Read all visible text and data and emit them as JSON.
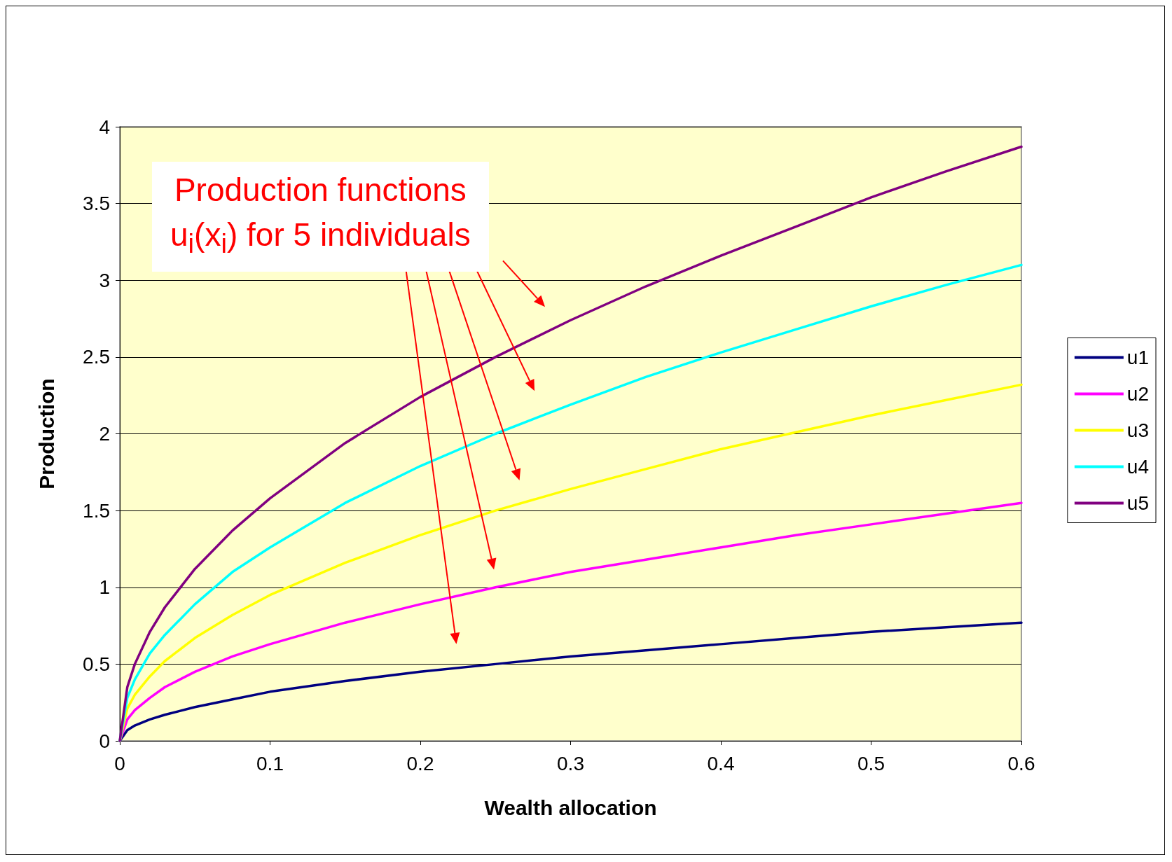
{
  "chart_data": {
    "type": "line",
    "xlabel": "Wealth allocation",
    "ylabel": "Production",
    "annotations": [
      "Production functions\nu$_{i}$(x$_{i}$) for 5 individuals"
    ],
    "x": [
      0,
      0.005,
      0.01,
      0.02,
      0.03,
      0.05,
      0.075,
      0.1,
      0.15,
      0.2,
      0.25,
      0.3,
      0.35,
      0.4,
      0.45,
      0.5,
      0.55,
      0.6
    ],
    "series": [
      {
        "name": "u1",
        "color": "#000080",
        "values": [
          0,
          0.07,
          0.1,
          0.14,
          0.17,
          0.22,
          0.27,
          0.32,
          0.39,
          0.45,
          0.5,
          0.55,
          0.59,
          0.63,
          0.67,
          0.71,
          0.74,
          0.77
        ]
      },
      {
        "name": "u2",
        "color": "#ff00ff",
        "values": [
          0,
          0.14,
          0.2,
          0.28,
          0.35,
          0.45,
          0.55,
          0.63,
          0.77,
          0.89,
          1,
          1.1,
          1.18,
          1.26,
          1.34,
          1.41,
          1.48,
          1.55
        ]
      },
      {
        "name": "u3",
        "color": "#ffff00",
        "values": [
          0,
          0.21,
          0.3,
          0.42,
          0.52,
          0.67,
          0.82,
          0.95,
          1.16,
          1.34,
          1.5,
          1.64,
          1.77,
          1.9,
          2.01,
          2.12,
          2.22,
          2.32
        ]
      },
      {
        "name": "u4",
        "color": "#00ffff",
        "values": [
          0,
          0.28,
          0.4,
          0.57,
          0.69,
          0.89,
          1.1,
          1.26,
          1.55,
          1.79,
          2,
          2.19,
          2.37,
          2.53,
          2.68,
          2.83,
          2.97,
          3.1
        ]
      },
      {
        "name": "u5",
        "color": "#800080",
        "values": [
          0,
          0.35,
          0.5,
          0.71,
          0.87,
          1.12,
          1.37,
          1.58,
          1.94,
          2.24,
          2.5,
          2.74,
          2.96,
          3.16,
          3.35,
          3.54,
          3.71,
          3.87
        ]
      }
    ],
    "xlim": [
      0,
      0.6
    ],
    "xticks": [
      0,
      0.1,
      0.2,
      0.3,
      0.4,
      0.5,
      0.6
    ],
    "ylim": [
      0,
      4
    ],
    "yticks": [
      0,
      0.5,
      1,
      1.5,
      2,
      2.5,
      3,
      3.5,
      4
    ],
    "grid": "y",
    "legend": "right",
    "marker": "none",
    "line_style": "solid"
  }
}
